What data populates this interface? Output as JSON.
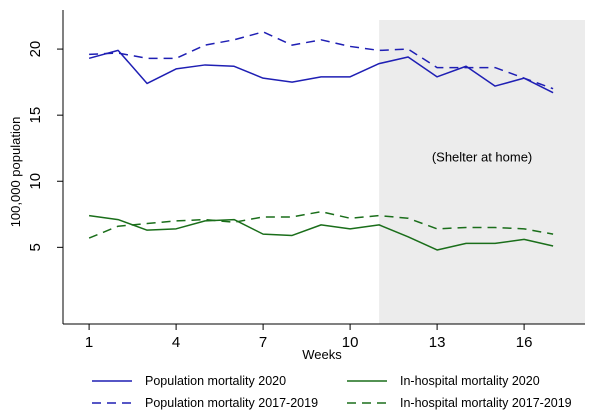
{
  "chart_data": {
    "type": "line",
    "xlabel": "Weeks",
    "ylabel": "100,000 population",
    "xlim": [
      0.1,
      18.1
    ],
    "ylim": [
      -0.8,
      22.2
    ],
    "xticks": [
      1,
      4,
      7,
      10,
      13,
      16
    ],
    "yticks": [
      5,
      10,
      15,
      20
    ],
    "x": [
      1,
      2,
      3,
      4,
      5,
      6,
      7,
      8,
      9,
      10,
      11,
      12,
      13,
      14,
      15,
      16,
      17
    ],
    "shaded_region": {
      "x_from": 11,
      "x_to": 18.1,
      "label": "(Shelter at home)"
    },
    "grid": false,
    "legend_position": "bottom",
    "series": [
      {
        "name": "Population mortality 2020",
        "color": "#1f1fb4",
        "style": "solid",
        "values": [
          19.3,
          19.9,
          17.4,
          18.5,
          18.8,
          18.7,
          17.8,
          17.5,
          17.9,
          17.9,
          18.9,
          19.4,
          17.9,
          18.7,
          17.2,
          17.8,
          16.7
        ]
      },
      {
        "name": "In-hospital mortality 2020",
        "color": "#1a6e1a",
        "style": "solid",
        "values": [
          7.4,
          7.1,
          6.3,
          6.4,
          7.0,
          7.1,
          6.0,
          5.9,
          6.7,
          6.4,
          6.7,
          5.8,
          4.8,
          5.3,
          5.3,
          5.6,
          5.1
        ]
      },
      {
        "name": "Population mortality 2017-2019",
        "color": "#1f1fb4",
        "style": "dashed",
        "values": [
          19.6,
          19.7,
          19.3,
          19.3,
          20.3,
          20.7,
          21.3,
          20.3,
          20.7,
          20.2,
          19.9,
          20.0,
          18.6,
          18.6,
          18.6,
          17.8,
          17.0
        ]
      },
      {
        "name": "In-hospital mortality 2017-2019",
        "color": "#1a6e1a",
        "style": "dashed",
        "values": [
          5.7,
          6.6,
          6.8,
          7.0,
          7.1,
          6.9,
          7.3,
          7.3,
          7.7,
          7.2,
          7.4,
          7.2,
          6.4,
          6.5,
          6.5,
          6.4,
          6.0
        ]
      }
    ]
  }
}
